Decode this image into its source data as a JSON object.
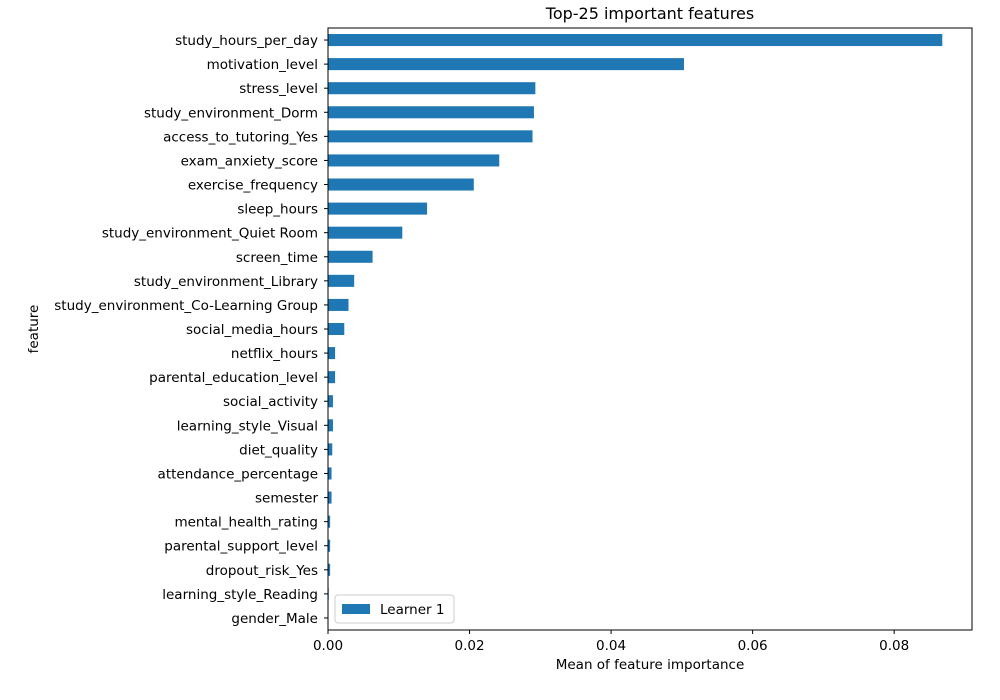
{
  "chart_data": {
    "type": "bar",
    "orientation": "horizontal",
    "title": "Top-25 important features",
    "xlabel": "Mean of feature importance",
    "ylabel": "feature",
    "xlim": [
      0,
      0.091
    ],
    "xticks": [
      0.0,
      0.02,
      0.04,
      0.06,
      0.08
    ],
    "xtick_labels": [
      "0.00",
      "0.02",
      "0.04",
      "0.06",
      "0.08"
    ],
    "grid": false,
    "legend_position": "lower-left",
    "bar_color": "#1f77b4",
    "categories": [
      "study_hours_per_day",
      "motivation_level",
      "stress_level",
      "study_environment_Dorm",
      "access_to_tutoring_Yes",
      "exam_anxiety_score",
      "exercise_frequency",
      "sleep_hours",
      "study_environment_Quiet Room",
      "screen_time",
      "study_environment_Library",
      "study_environment_Co-Learning Group",
      "social_media_hours",
      "netflix_hours",
      "parental_education_level",
      "social_activity",
      "learning_style_Visual",
      "diet_quality",
      "attendance_percentage",
      "semester",
      "mental_health_rating",
      "parental_support_level",
      "dropout_risk_Yes",
      "learning_style_Reading",
      "gender_Male"
    ],
    "series": [
      {
        "name": "Learner 1",
        "values": [
          0.0868,
          0.0503,
          0.0293,
          0.0291,
          0.0289,
          0.0242,
          0.0206,
          0.014,
          0.0105,
          0.0063,
          0.0037,
          0.0029,
          0.0023,
          0.001,
          0.001,
          0.0007,
          0.0007,
          0.0006,
          0.0005,
          0.0005,
          0.0003,
          0.0003,
          0.0003,
          0.0001,
          0.0
        ]
      }
    ]
  }
}
